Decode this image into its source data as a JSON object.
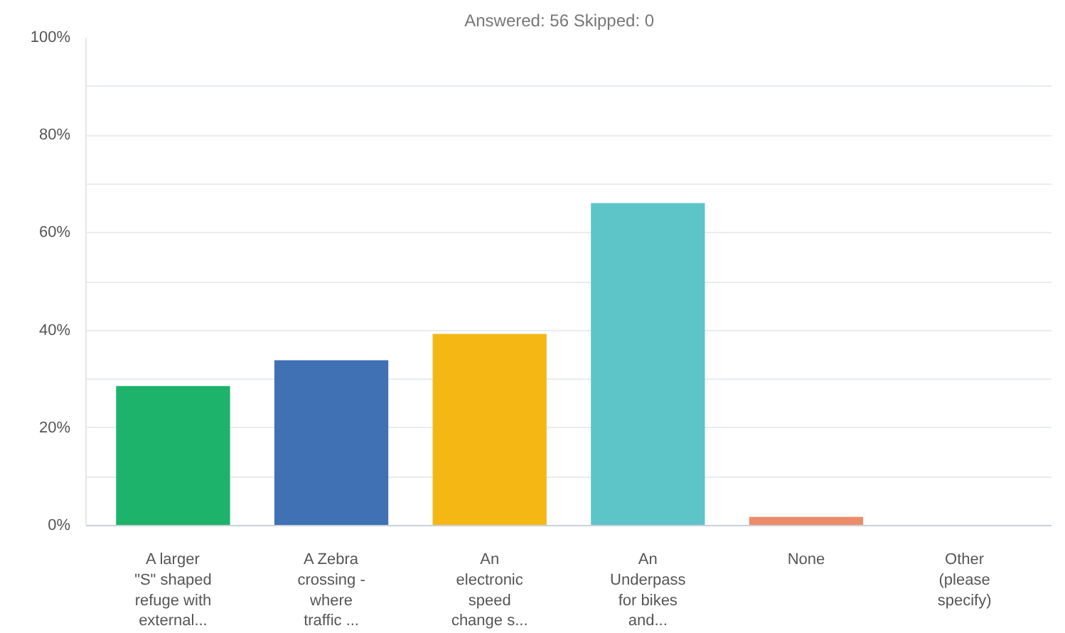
{
  "chart_data": {
    "type": "bar",
    "title": "Answered: 56     Skipped: 0",
    "categories": [
      "A larger\n\"S\" shaped\nrefuge with\nexternal...",
      "A Zebra\ncrossing -\nwhere\ntraffic ...",
      "An\nelectronic\nspeed\nchange s...",
      "An\nUnderpass\nfor bikes\nand...",
      "None",
      "Other\n(please\nspecify)"
    ],
    "values": [
      28.6,
      33.9,
      39.3,
      66.1,
      1.8,
      0
    ],
    "colors": [
      "#1db36a",
      "#3f71b4",
      "#f4b714",
      "#5dc4c8",
      "#ee8b68",
      "#999999"
    ],
    "ylim": [
      0,
      100
    ],
    "yticks": [
      {
        "value": 0,
        "label": "0%"
      },
      {
        "value": 10,
        "label": null
      },
      {
        "value": 20,
        "label": "20%"
      },
      {
        "value": 30,
        "label": null
      },
      {
        "value": 40,
        "label": "40%"
      },
      {
        "value": 50,
        "label": null
      },
      {
        "value": 60,
        "label": "60%"
      },
      {
        "value": 70,
        "label": null
      },
      {
        "value": 80,
        "label": "80%"
      },
      {
        "value": 90,
        "label": null
      },
      {
        "value": 100,
        "label": "100%"
      }
    ],
    "grid": "y"
  }
}
